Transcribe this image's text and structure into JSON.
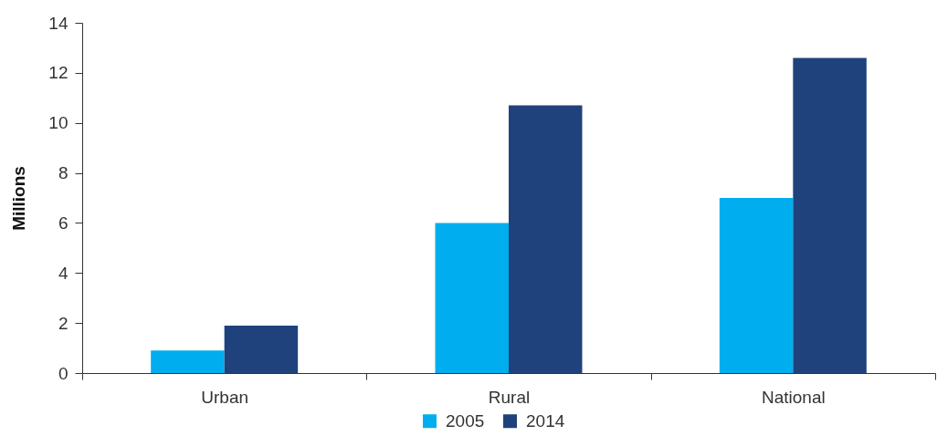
{
  "chart_data": {
    "type": "bar",
    "ylabel": "Millions",
    "categories": [
      "Urban",
      "Rural",
      "National"
    ],
    "series": [
      {
        "name": "2005",
        "color": "#00aeef",
        "values": [
          0.9,
          6.0,
          7.0
        ]
      },
      {
        "name": "2014",
        "color": "#1f427c",
        "values": [
          1.9,
          10.7,
          12.6
        ]
      }
    ],
    "ylim": [
      0,
      14
    ],
    "yticks": [
      0,
      2,
      4,
      6,
      8,
      10,
      12,
      14
    ],
    "grid": false,
    "legend": "bottom"
  }
}
